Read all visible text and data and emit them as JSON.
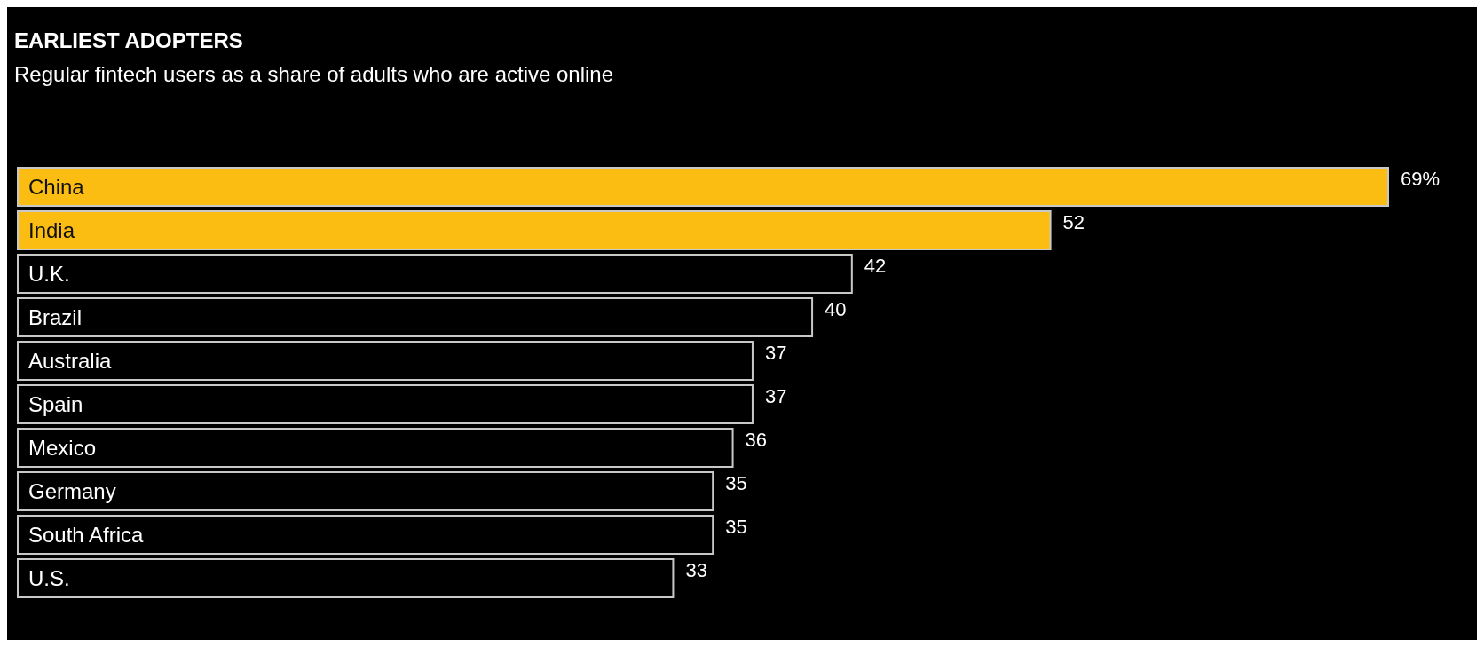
{
  "chart_data": {
    "type": "bar",
    "orientation": "horizontal",
    "title": "EARLIEST ADOPTERS",
    "subtitle": "Regular fintech users as a share of adults who are active online",
    "categories": [
      "China",
      "India",
      "U.K.",
      "Brazil",
      "Australia",
      "Spain",
      "Mexico",
      "Germany",
      "South Africa",
      "U.S."
    ],
    "values": [
      69,
      52,
      42,
      40,
      37,
      37,
      36,
      35,
      35,
      33
    ],
    "value_labels": [
      "69%",
      "52",
      "42",
      "40",
      "37",
      "37",
      "36",
      "35",
      "35",
      "33"
    ],
    "colors": [
      "#fbbd12",
      "#fbbd12",
      "#000000",
      "#000000",
      "#000000",
      "#000000",
      "#000000",
      "#000000",
      "#000000",
      "#000000"
    ],
    "grid": false,
    "legend": false
  }
}
